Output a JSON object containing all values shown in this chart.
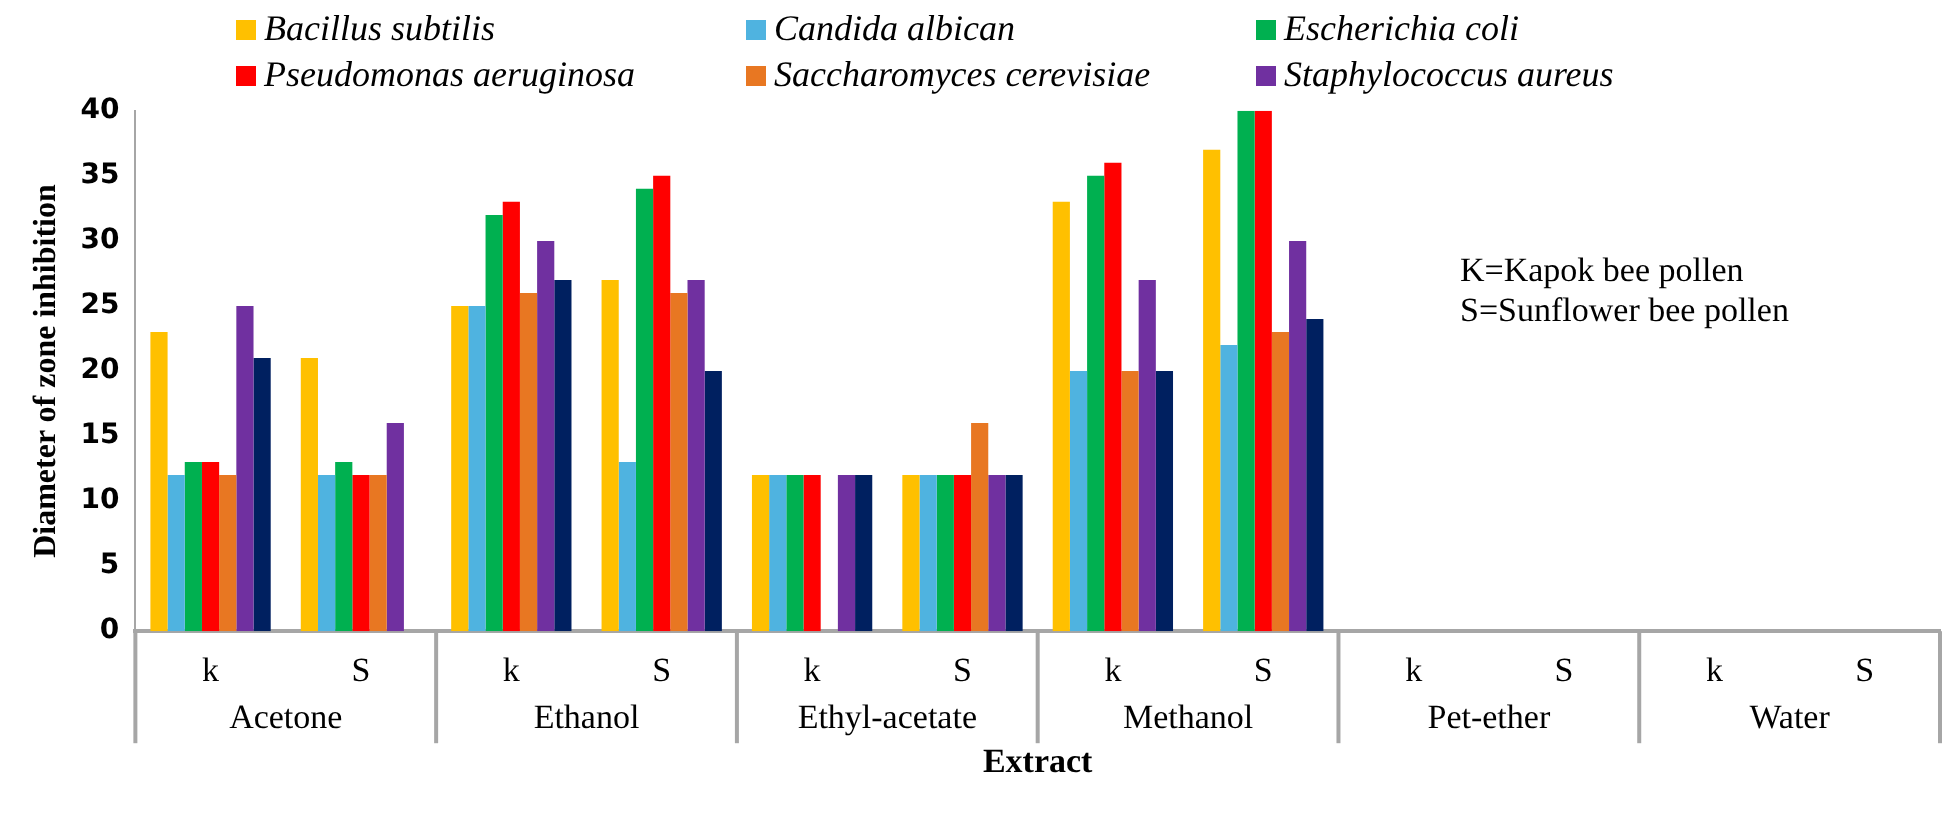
{
  "chart_data": {
    "type": "bar",
    "xlabel": "Extract",
    "ylabel": "Diameter of zone inhibition",
    "categories": [
      "k",
      "S",
      "k",
      "S",
      "k",
      "S",
      "k",
      "S",
      "k",
      "S",
      "k",
      "S"
    ],
    "annotations": [
      "Acetone",
      "Ethanol",
      "Ethyl-acetate",
      "Methanol",
      "Pet-ether",
      "Water",
      "K=Kapok bee pollen",
      "S=Sunflower bee pollen"
    ],
    "series": [
      {
        "name": "Bacillus subtilis",
        "color": "#ffc000",
        "values": [
          23,
          21,
          25,
          27,
          12,
          12,
          33,
          37,
          0,
          0,
          0,
          0
        ]
      },
      {
        "name": "Candida albican",
        "color": "#4fb3e0",
        "values": [
          12,
          12,
          25,
          13,
          12,
          12,
          20,
          22,
          0,
          0,
          0,
          0
        ]
      },
      {
        "name": "Escherichia coli",
        "color": "#00b050",
        "values": [
          13,
          13,
          32,
          34,
          12,
          12,
          35,
          40,
          0,
          0,
          0,
          0
        ]
      },
      {
        "name": "Pseudomonas aeruginosa",
        "color": "#ff0000",
        "values": [
          13,
          12,
          33,
          35,
          12,
          12,
          36,
          40,
          0,
          0,
          0,
          0
        ]
      },
      {
        "name": "Saccharomyces cerevisiae",
        "color": "#e87722",
        "values": [
          12,
          12,
          26,
          26,
          0,
          16,
          20,
          23,
          0,
          0,
          0,
          0
        ]
      },
      {
        "name": "Staphylococcus aureus",
        "color": "#7030a0",
        "values": [
          25,
          16,
          30,
          27,
          12,
          12,
          27,
          30,
          0,
          0,
          0,
          0
        ]
      },
      {
        "color": "#002060",
        "values": [
          21,
          0,
          27,
          20,
          12,
          12,
          20,
          24,
          0,
          0,
          0,
          0
        ]
      }
    ],
    "ylim": [
      0,
      40
    ],
    "yticks": [
      0,
      5,
      10,
      15,
      20,
      25,
      30,
      35,
      40
    ],
    "grid": false,
    "legend": "top"
  }
}
